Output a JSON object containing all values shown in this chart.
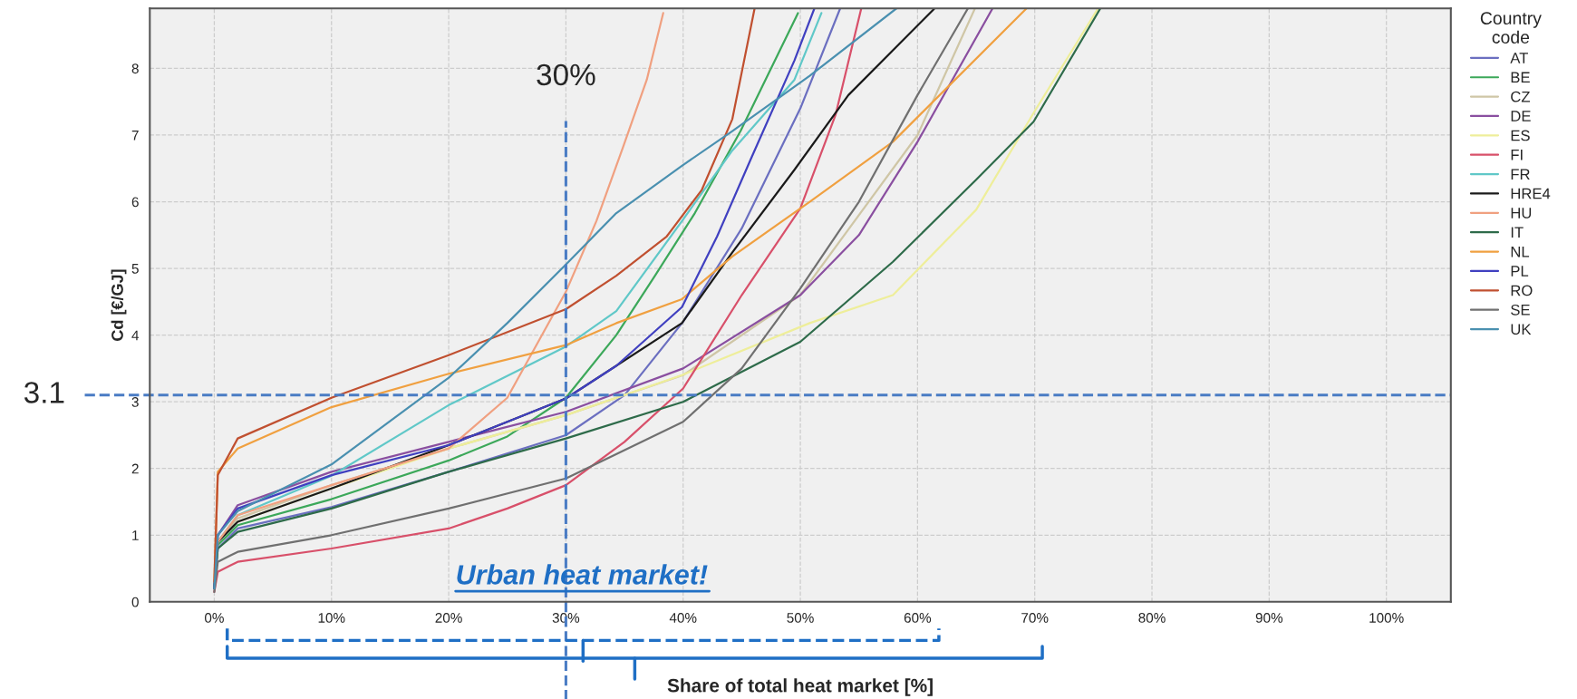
{
  "chart_data": {
    "type": "line",
    "xlabel": "Share of total heat market [%]",
    "ylabel": "Cd [€/GJ]",
    "legend_title": "Country code",
    "xlim": [
      -5.5,
      105.5
    ],
    "ylim": [
      0,
      8.9
    ],
    "xticks": [
      {
        "value": 0,
        "label": "0%"
      },
      {
        "value": 10,
        "label": "10%"
      },
      {
        "value": 20,
        "label": "20%"
      },
      {
        "value": 30,
        "label": "30%"
      },
      {
        "value": 40,
        "label": "40%"
      },
      {
        "value": 50,
        "label": "50%"
      },
      {
        "value": 60,
        "label": "60%"
      },
      {
        "value": 70,
        "label": "70%"
      },
      {
        "value": 80,
        "label": "80%"
      },
      {
        "value": 90,
        "label": "90%"
      },
      {
        "value": 100,
        "label": "100%"
      }
    ],
    "yticks": [
      0,
      1,
      2,
      3,
      4,
      5,
      6,
      7,
      8
    ],
    "grid": true,
    "legend": "right",
    "marker": "none",
    "line_style": "solid",
    "series": [
      {
        "name": "AT",
        "color": "#6b6fc0",
        "x": [
          0,
          0.3,
          2,
          10,
          20,
          30,
          35,
          40,
          45,
          50,
          53.4
        ],
        "values": [
          0.2,
          0.8,
          1.1,
          1.42,
          1.95,
          2.5,
          3.1,
          4.2,
          5.6,
          7.4,
          8.9
        ]
      },
      {
        "name": "BE",
        "color": "#3ca85a",
        "x": [
          0,
          0.3,
          2,
          10,
          20,
          25,
          30,
          34.3,
          37.6,
          41,
          44.9,
          49.8
        ],
        "values": [
          0.2,
          0.85,
          1.15,
          1.54,
          2.12,
          2.48,
          3.06,
          4.0,
          4.89,
          5.83,
          7.06,
          8.83
        ]
      },
      {
        "name": "CZ",
        "color": "#cfc6a6",
        "x": [
          0,
          0.3,
          2,
          10,
          20,
          30,
          40,
          50,
          60,
          64.9
        ],
        "values": [
          0.2,
          0.9,
          1.25,
          1.75,
          2.3,
          2.8,
          3.4,
          4.6,
          7.0,
          8.9
        ]
      },
      {
        "name": "DE",
        "color": "#8a4fa0",
        "x": [
          0,
          0.3,
          2,
          10,
          20,
          30,
          40,
          50,
          55,
          60,
          66.4
        ],
        "values": [
          0.2,
          1.0,
          1.45,
          1.95,
          2.4,
          2.85,
          3.5,
          4.6,
          5.5,
          6.9,
          8.9
        ]
      },
      {
        "name": "ES",
        "color": "#eeee9a",
        "x": [
          2,
          10,
          20,
          30,
          39.9,
          50.8,
          57.9,
          65,
          70,
          75.4
        ],
        "values": [
          1.2,
          1.7,
          2.3,
          2.8,
          3.4,
          4.18,
          4.6,
          5.88,
          7.36,
          8.9
        ]
      },
      {
        "name": "FI",
        "color": "#d8506a",
        "x": [
          0,
          0.3,
          2,
          10,
          20,
          25,
          30,
          35,
          40,
          45,
          50,
          53,
          55.2
        ],
        "values": [
          0.15,
          0.45,
          0.6,
          0.8,
          1.1,
          1.4,
          1.75,
          2.4,
          3.2,
          4.6,
          5.9,
          7.3,
          8.9
        ]
      },
      {
        "name": "FR",
        "color": "#60c8c8",
        "x": [
          0,
          0.3,
          2,
          10,
          20,
          30,
          34.3,
          39.9,
          44.2,
          49.5,
          51.8
        ],
        "values": [
          0.2,
          0.9,
          1.3,
          1.89,
          2.95,
          3.83,
          4.36,
          5.71,
          6.77,
          7.83,
          8.83
        ]
      },
      {
        "name": "HRE4",
        "color": "#1a1a1a",
        "x": [
          0,
          0.3,
          2,
          10,
          20,
          30,
          39.9,
          44.2,
          49.5,
          54.1,
          61.4
        ],
        "values": [
          0.2,
          0.9,
          1.2,
          1.7,
          2.35,
          3.05,
          4.18,
          5.24,
          6.48,
          7.6,
          8.89
        ]
      },
      {
        "name": "HU",
        "color": "#f0a080",
        "x": [
          0,
          0.3,
          2,
          10,
          20,
          25,
          30,
          32.6,
          34.9,
          36.9,
          38.3
        ],
        "values": [
          0.2,
          0.9,
          1.3,
          1.75,
          2.3,
          3.06,
          4.65,
          5.71,
          6.83,
          7.83,
          8.83
        ]
      },
      {
        "name": "IT",
        "color": "#2e6b4a",
        "x": [
          0,
          0.3,
          2,
          10,
          20,
          30,
          40,
          50,
          57.9,
          65,
          69.9,
          75.6
        ],
        "values": [
          0.2,
          0.8,
          1.05,
          1.4,
          1.95,
          2.45,
          3.0,
          3.9,
          5.1,
          6.33,
          7.2,
          8.9
        ]
      },
      {
        "name": "NL",
        "color": "#f0a040",
        "x": [
          0,
          0.3,
          2,
          10,
          20,
          30,
          34.3,
          39.9,
          44.2,
          50.8,
          57.9,
          69.3
        ],
        "values": [
          0.3,
          1.95,
          2.3,
          2.92,
          3.42,
          3.85,
          4.18,
          4.54,
          5.18,
          6.0,
          6.9,
          8.9
        ]
      },
      {
        "name": "PL",
        "color": "#4040c0",
        "x": [
          0,
          0.3,
          2,
          10,
          20,
          30,
          34.3,
          39.9,
          42.9,
          45.8,
          49.5,
          51.2
        ],
        "values": [
          0.2,
          1.0,
          1.4,
          1.9,
          2.35,
          3.05,
          3.54,
          4.42,
          5.48,
          6.65,
          8.12,
          8.9
        ]
      },
      {
        "name": "RO",
        "color": "#c05030",
        "x": [
          0,
          0.3,
          2,
          10,
          20,
          30,
          34.3,
          38.6,
          41.6,
          44.2,
          46.1
        ],
        "values": [
          0.3,
          1.9,
          2.45,
          3.06,
          3.7,
          4.39,
          4.89,
          5.48,
          6.18,
          7.24,
          8.9
        ]
      },
      {
        "name": "SE",
        "color": "#707070",
        "x": [
          0,
          0.3,
          2,
          10,
          20,
          30,
          40,
          45,
          50,
          55,
          60,
          64.3
        ],
        "values": [
          0.15,
          0.6,
          0.75,
          1.0,
          1.4,
          1.85,
          2.7,
          3.5,
          4.7,
          6.0,
          7.6,
          8.9
        ]
      },
      {
        "name": "UK",
        "color": "#4a90b0",
        "x": [
          0,
          0.3,
          2,
          10,
          20,
          25,
          30,
          34.3,
          39.9,
          44.2,
          50.8,
          58.2
        ],
        "values": [
          0.2,
          1.0,
          1.36,
          2.06,
          3.36,
          4.18,
          5.06,
          5.83,
          6.54,
          7.06,
          7.89,
          8.9
        ]
      }
    ],
    "ref_lines": [
      {
        "axis": "x",
        "value": 30,
        "label": "30%",
        "color": "#4a7cc4",
        "line_style": "dashed"
      },
      {
        "axis": "y",
        "value": 3.1,
        "label": "3.1",
        "color": "#4a7cc4",
        "line_style": "dashed"
      }
    ],
    "annotations": [
      "Urban heat market!"
    ]
  }
}
